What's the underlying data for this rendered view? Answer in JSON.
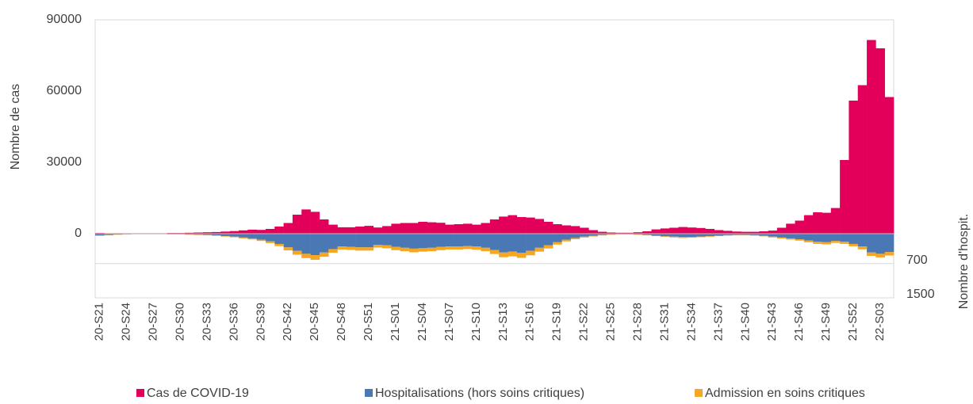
{
  "chart_data": {
    "type": "bar",
    "ylabel": "Nombre de cas",
    "y2label": "Nombre d'hospit.",
    "categories": [
      "20-S21",
      null,
      null,
      "20-S24",
      null,
      null,
      "20-S27",
      null,
      null,
      "20-S30",
      null,
      null,
      "20-S33",
      null,
      null,
      "20-S36",
      null,
      null,
      "20-S39",
      null,
      null,
      "20-S42",
      null,
      null,
      "20-S45",
      null,
      null,
      "20-S48",
      null,
      null,
      "20-S51",
      null,
      null,
      "21-S01",
      null,
      null,
      "21-S04",
      null,
      null,
      "21-S07",
      null,
      null,
      "21-S10",
      null,
      null,
      "21-S13",
      null,
      null,
      "21-S16",
      null,
      null,
      "21-S19",
      null,
      null,
      "21-S22",
      null,
      null,
      "21-S25",
      null,
      null,
      "21-S28",
      null,
      null,
      "21-S31",
      null,
      null,
      "21-S34",
      null,
      null,
      "21-S37",
      null,
      null,
      "21-S40",
      null,
      null,
      "21-S43",
      null,
      null,
      "21-S46",
      null,
      null,
      "21-S49",
      null,
      null,
      "21-S52",
      null,
      null,
      "22-S03",
      null
    ],
    "series": [
      {
        "name": "Cas de COVID-19",
        "color": "#e3005b",
        "axis": "y",
        "values": [
          300,
          200,
          200,
          200,
          200,
          200,
          200,
          200,
          300,
          300,
          400,
          500,
          600,
          700,
          900,
          1100,
          1400,
          1700,
          1600,
          2000,
          3000,
          4500,
          8000,
          10200,
          9200,
          6000,
          3800,
          2700,
          2700,
          3000,
          3300,
          2600,
          3200,
          4200,
          4500,
          4500,
          5000,
          4800,
          4600,
          3800,
          4000,
          4200,
          3800,
          4500,
          6000,
          7200,
          7800,
          7000,
          6800,
          6200,
          5000,
          4000,
          3500,
          3200,
          2500,
          1500,
          800,
          500,
          400,
          400,
          600,
          1000,
          1800,
          2200,
          2500,
          2800,
          2600,
          2400,
          2000,
          1500,
          1200,
          900,
          800,
          800,
          1000,
          1300,
          2500,
          4200,
          5500,
          7800,
          9000,
          8800,
          10800,
          31000,
          56000,
          62500,
          81500,
          78000,
          57500
        ]
      },
      {
        "name": "Hospitalisations (hors soins critiques)",
        "color": "#4a78b4",
        "axis": "y2",
        "values": [
          40,
          30,
          20,
          15,
          10,
          10,
          10,
          10,
          15,
          15,
          20,
          25,
          30,
          40,
          55,
          70,
          90,
          110,
          140,
          180,
          240,
          320,
          400,
          470,
          500,
          440,
          360,
          300,
          310,
          320,
          320,
          260,
          270,
          310,
          330,
          350,
          340,
          330,
          310,
          300,
          300,
          290,
          300,
          330,
          380,
          440,
          420,
          450,
          400,
          330,
          270,
          200,
          140,
          100,
          70,
          50,
          30,
          20,
          15,
          15,
          20,
          30,
          45,
          60,
          70,
          80,
          75,
          65,
          55,
          45,
          35,
          30,
          30,
          35,
          50,
          70,
          90,
          110,
          130,
          160,
          190,
          200,
          170,
          190,
          240,
          300,
          440,
          470,
          430
        ]
      },
      {
        "name": "Admission en soins critiques",
        "color": "#f5a623",
        "axis": "y2",
        "values": [
          10,
          8,
          5,
          5,
          3,
          3,
          3,
          3,
          4,
          4,
          5,
          6,
          8,
          10,
          12,
          15,
          20,
          25,
          30,
          40,
          50,
          70,
          90,
          100,
          110,
          100,
          85,
          70,
          70,
          75,
          75,
          65,
          70,
          75,
          80,
          85,
          80,
          80,
          75,
          70,
          70,
          70,
          75,
          80,
          95,
          110,
          110,
          115,
          105,
          90,
          75,
          55,
          40,
          30,
          20,
          15,
          10,
          6,
          5,
          5,
          6,
          8,
          12,
          15,
          18,
          20,
          20,
          18,
          15,
          12,
          10,
          8,
          8,
          10,
          12,
          18,
          22,
          28,
          32,
          40,
          48,
          50,
          45,
          48,
          55,
          65,
          80,
          85,
          80
        ]
      }
    ],
    "ylim": [
      -27000,
      90000
    ],
    "yticks": [
      0,
      30000,
      60000,
      90000
    ],
    "y2lim": [
      1500,
      -5000
    ],
    "y2ticks": [
      700,
      1500
    ],
    "grid": true
  }
}
